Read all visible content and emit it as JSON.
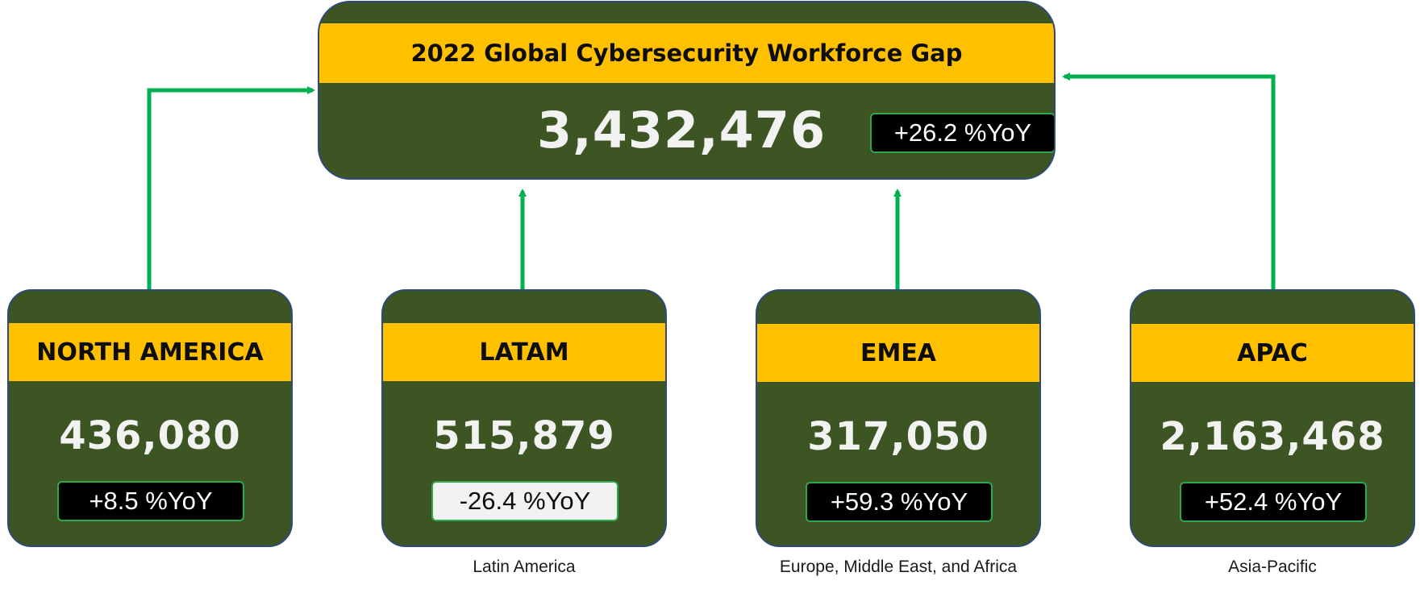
{
  "global": {
    "title": "2022 Global Cybersecurity Workforce Gap",
    "value": "3,432,476",
    "yoy": "+26.2 %YoY"
  },
  "regions": [
    {
      "name": "NORTH AMERICA",
      "value": "436,080",
      "yoy": "+8.5 %YoY",
      "caption": ""
    },
    {
      "name": "LATAM",
      "value": "515,879",
      "yoy": "-26.4 %YoY",
      "caption": "Latin America"
    },
    {
      "name": "EMEA",
      "value": "317,050",
      "yoy": "+59.3 %YoY",
      "caption": "Europe, Middle East, and Africa"
    },
    {
      "name": "APAC",
      "value": "2,163,468",
      "yoy": "+52.4 %YoY",
      "caption": "Asia-Pacific"
    }
  ],
  "colors": {
    "card_fill": "#3c5523",
    "band_fill": "#ffc000",
    "arrow": "#00b050",
    "badge_border": "#2ea84f"
  }
}
